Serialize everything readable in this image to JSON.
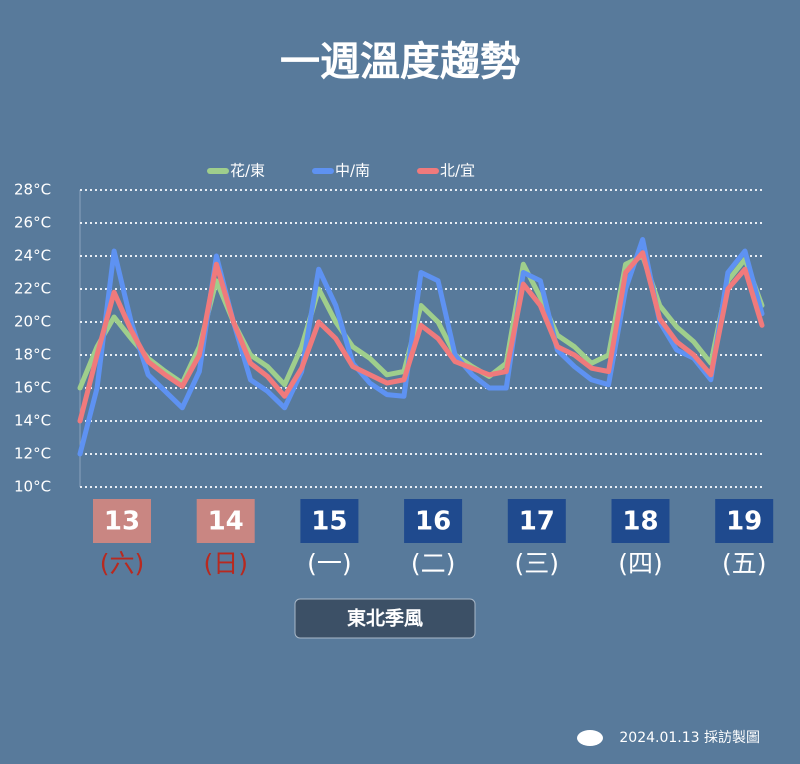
{
  "chart_data": {
    "type": "line",
    "title": "一週溫度趨勢",
    "categories": [
      null,
      null,
      null,
      null,
      null,
      null,
      null,
      null,
      null,
      null,
      null,
      null,
      null,
      null,
      null,
      null,
      null,
      null,
      null,
      null,
      null,
      null,
      null,
      null,
      null,
      null,
      null,
      null,
      null,
      null,
      null,
      null,
      null,
      null,
      null,
      null,
      null,
      null,
      null,
      null,
      null
    ],
    "series": [
      {
        "name": "花/東",
        "color": "#9fce8c",
        "values": [
          16,
          18.5,
          20.3,
          19,
          17.8,
          17,
          16.3,
          18.5,
          22.5,
          20,
          18,
          17.3,
          16.2,
          18.5,
          22,
          20,
          18.5,
          17.8,
          16.8,
          17,
          21,
          20,
          18,
          17.3,
          16.7,
          17.5,
          23.5,
          21.5,
          19.2,
          18.5,
          17.5,
          18,
          23.5,
          24,
          21,
          19.7,
          18.8,
          17.5,
          22.5,
          23.8,
          21
        ]
      },
      {
        "name": "中/南",
        "color": "#5e92f2",
        "values": [
          12,
          16,
          24.3,
          20,
          16.8,
          15.8,
          14.8,
          17,
          24,
          20,
          16.5,
          15.8,
          14.8,
          17,
          23.2,
          21,
          17.5,
          16.3,
          15.6,
          15.5,
          23,
          22.5,
          18,
          16.8,
          16,
          16,
          23,
          22.5,
          18.3,
          17.3,
          16.5,
          16.2,
          22,
          25,
          20,
          18.3,
          17.8,
          16.5,
          23,
          24.3,
          20.5
        ]
      },
      {
        "name": "北/宜",
        "color": "#f07a7c",
        "values": [
          14,
          18,
          21.8,
          19.5,
          17.6,
          16.8,
          16.1,
          18,
          23.5,
          20,
          17.5,
          16.7,
          15.5,
          17.2,
          20,
          19,
          17.3,
          16.8,
          16.3,
          16.5,
          19.8,
          19,
          17.6,
          17.2,
          16.8,
          17,
          22.3,
          21,
          18.5,
          18,
          17.2,
          17,
          23,
          24.2,
          20.2,
          18.8,
          18,
          16.8,
          22,
          23.2,
          19.8
        ]
      }
    ],
    "ylim": [
      10,
      28
    ],
    "yticks": [
      {
        "value": 10,
        "label": "10°C"
      },
      {
        "value": 12,
        "label": "12°C"
      },
      {
        "value": 14,
        "label": "14°C"
      },
      {
        "value": 16,
        "label": "16°C"
      },
      {
        "value": 18,
        "label": "18°C"
      },
      {
        "value": 20,
        "label": "20°C"
      },
      {
        "value": 22,
        "label": "22°C"
      },
      {
        "value": 24,
        "label": "24°C"
      },
      {
        "value": 26,
        "label": "26°C"
      },
      {
        "value": 28,
        "label": "28°C"
      }
    ],
    "grid": true,
    "days": [
      {
        "date": "13",
        "weekday": "(六)",
        "weekend": true
      },
      {
        "date": "14",
        "weekday": "(日)",
        "weekend": true
      },
      {
        "date": "15",
        "weekday": "(一)",
        "weekend": false
      },
      {
        "date": "16",
        "weekday": "(二)",
        "weekend": false
      },
      {
        "date": "17",
        "weekday": "(三)",
        "weekend": false
      },
      {
        "date": "18",
        "weekday": "(四)",
        "weekend": false
      },
      {
        "date": "19",
        "weekday": "(五)",
        "weekend": false
      }
    ],
    "badge": "東北季風",
    "footer": "2024.01.13 採訪製圖"
  }
}
